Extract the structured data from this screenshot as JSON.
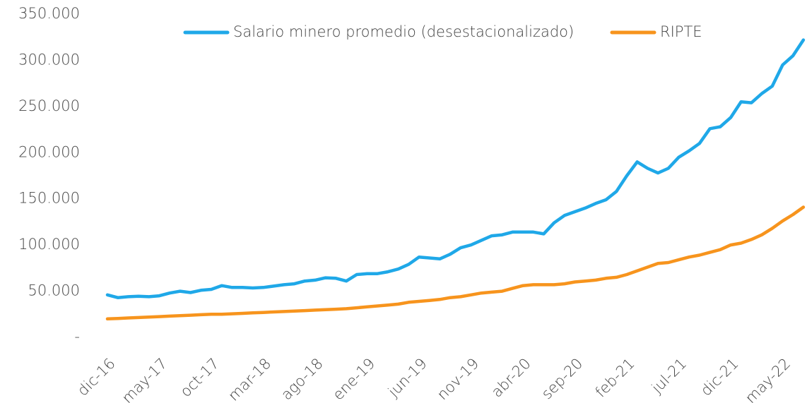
{
  "chart_data": {
    "type": "line",
    "categories": [
      "dic-16",
      null,
      null,
      null,
      null,
      "may-17",
      null,
      null,
      null,
      null,
      "oct-17",
      null,
      null,
      null,
      null,
      "mar-18",
      null,
      null,
      null,
      null,
      "ago-18",
      null,
      null,
      null,
      null,
      "ene-19",
      null,
      null,
      null,
      null,
      "jun-19",
      null,
      null,
      null,
      null,
      "nov-19",
      null,
      null,
      null,
      null,
      "abr-20",
      null,
      null,
      null,
      null,
      "sep-20",
      null,
      null,
      null,
      null,
      "feb-21",
      null,
      null,
      null,
      null,
      "jul-21",
      null,
      null,
      null,
      null,
      "dic-21",
      null,
      null,
      null,
      null,
      "may-22",
      null,
      null
    ],
    "series": [
      {
        "name": "Salario minero promedio (desestacionalizado)",
        "color": "#1fa8e8",
        "values": [
          46000,
          43000,
          44000,
          44500,
          44000,
          45000,
          48000,
          50000,
          48500,
          51000,
          52000,
          56000,
          54000,
          54000,
          53500,
          54000,
          55500,
          57000,
          58000,
          61000,
          62000,
          64500,
          64000,
          61000,
          68000,
          69000,
          69000,
          71000,
          74000,
          79000,
          87000,
          86000,
          85000,
          90000,
          97000,
          100000,
          105000,
          110000,
          111000,
          114000,
          114000,
          114000,
          112000,
          124000,
          132000,
          136000,
          140000,
          145000,
          149000,
          158000,
          175000,
          190000,
          183000,
          178000,
          183000,
          195000,
          202000,
          210000,
          226000,
          228000,
          238000,
          255000,
          254000,
          264000,
          272000,
          295000,
          305000,
          322000
        ]
      },
      {
        "name": "RIPTE",
        "color": "#f7941d",
        "values": [
          20000,
          20500,
          21000,
          21500,
          22000,
          22500,
          23000,
          23500,
          24000,
          24500,
          25000,
          25000,
          25500,
          26000,
          26500,
          27000,
          27500,
          28000,
          28500,
          29000,
          29500,
          30000,
          30500,
          31000,
          32000,
          33000,
          34000,
          35000,
          36000,
          38000,
          39000,
          40000,
          41000,
          43000,
          44000,
          46000,
          48000,
          49000,
          50000,
          53000,
          56000,
          57000,
          57000,
          57000,
          58000,
          60000,
          61000,
          62000,
          64000,
          65000,
          68000,
          72000,
          76000,
          80000,
          81000,
          84000,
          87000,
          89000,
          92000,
          95000,
          100000,
          102000,
          106000,
          111000,
          118000,
          126000,
          133000,
          141000
        ]
      }
    ],
    "ylim": [
      0,
      350000
    ],
    "yticks": [
      {
        "value": 0,
        "label": "-"
      },
      {
        "value": 50000,
        "label": "50.000"
      },
      {
        "value": 100000,
        "label": "100.000"
      },
      {
        "value": 150000,
        "label": "150.000"
      },
      {
        "value": 200000,
        "label": "200.000"
      },
      {
        "value": 250000,
        "label": "250.000"
      },
      {
        "value": 300000,
        "label": "300.000"
      },
      {
        "value": 350000,
        "label": "350.000"
      }
    ],
    "legend": "top"
  }
}
